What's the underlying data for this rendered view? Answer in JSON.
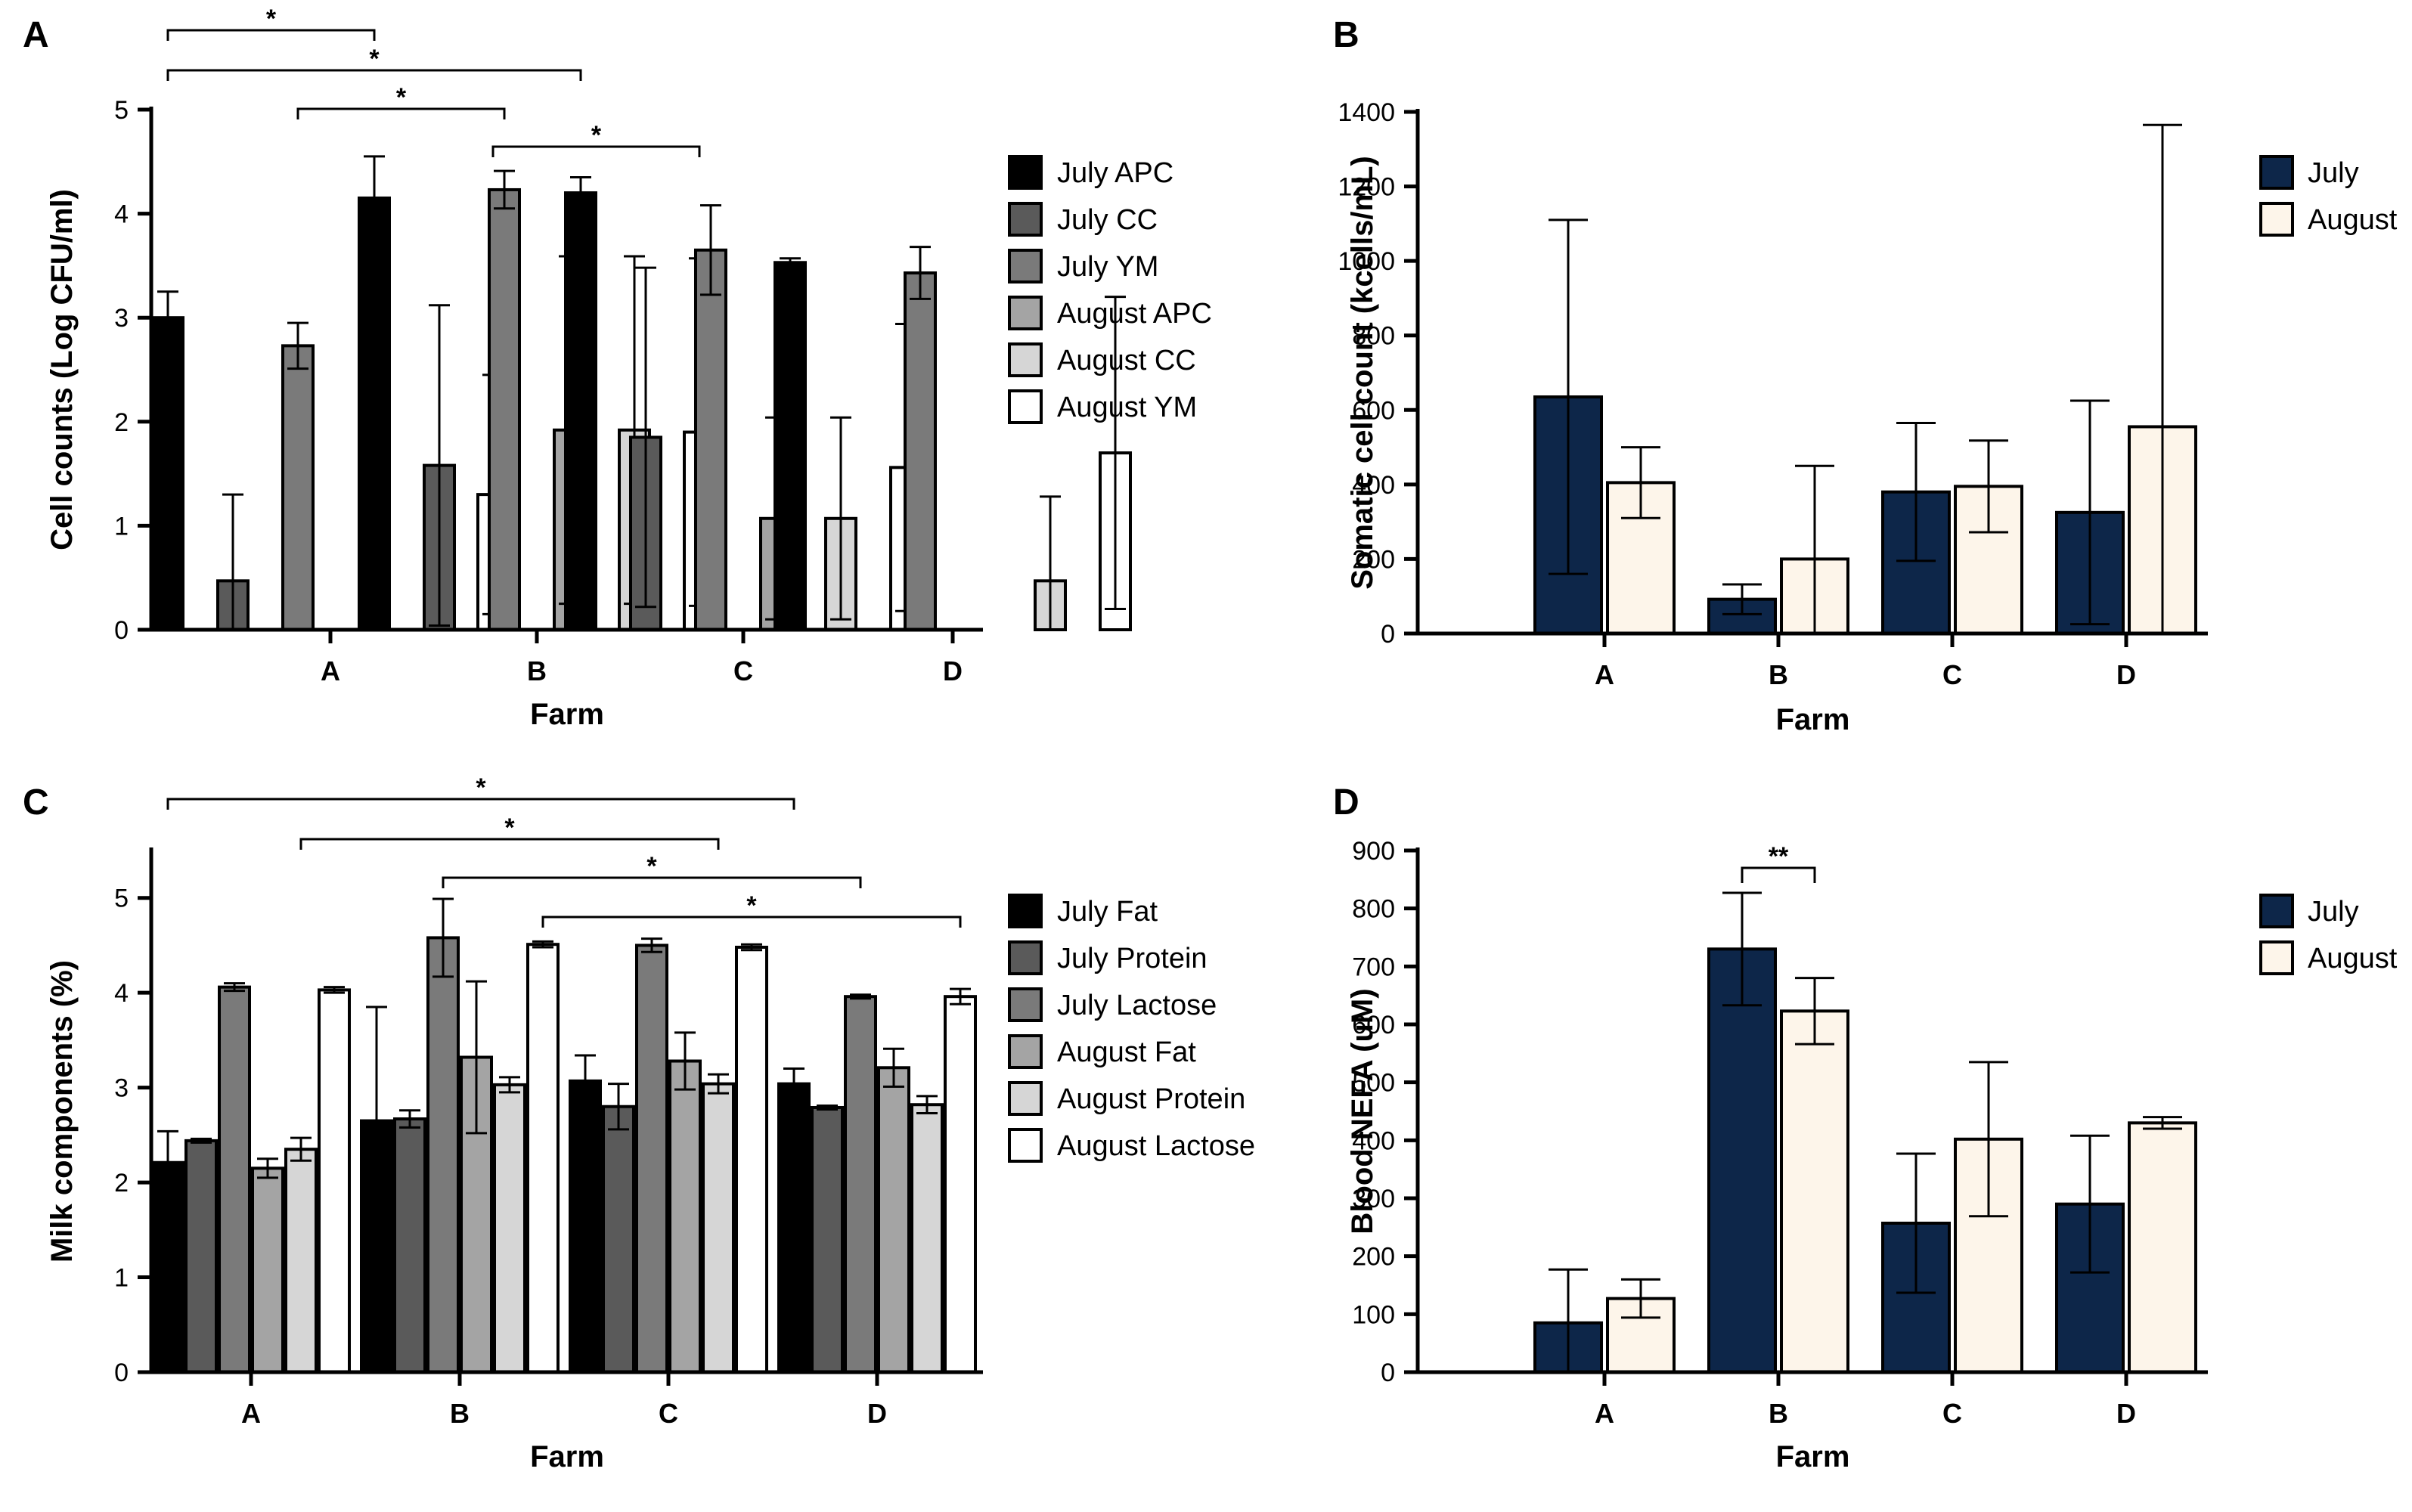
{
  "chart_data": [
    {
      "panel": "A",
      "type": "bar",
      "ylabel": "Cell counts (Log CFU/ml)",
      "xlabel": "Farm",
      "ylim": [
        0,
        5
      ],
      "yticks": [
        0,
        1,
        2,
        3,
        4,
        5
      ],
      "categories": [
        "A",
        "B",
        "C",
        "D"
      ],
      "series": [
        {
          "name": "July APC",
          "color": "#000000",
          "values": [
            3.0,
            4.15,
            4.2,
            3.53
          ],
          "errors": [
            0.25,
            0.4,
            0.15,
            0.04
          ]
        },
        {
          "name": "July CC",
          "color": "#5a5a5a",
          "values": [
            0.47,
            1.58,
            1.85,
            null
          ],
          "errors": [
            0.83,
            1.54,
            1.63,
            null
          ]
        },
        {
          "name": "July YM",
          "color": "#7a7a7a",
          "values": [
            2.73,
            4.23,
            3.65,
            3.43
          ],
          "errors": [
            0.22,
            0.18,
            0.43,
            0.25
          ]
        },
        {
          "name": "August APC",
          "color": "#a4a4a4",
          "values": [
            null,
            1.92,
            1.07,
            null
          ],
          "errors": [
            null,
            1.67,
            0.97,
            null
          ]
        },
        {
          "name": "August CC",
          "color": "#d6d6d6",
          "values": [
            null,
            1.92,
            1.07,
            0.47
          ],
          "errors": [
            null,
            1.67,
            0.97,
            0.81
          ]
        },
        {
          "name": "August YM",
          "color": "#ffffff",
          "values": [
            1.3,
            1.9,
            1.56,
            1.7
          ],
          "errors": [
            1.15,
            1.67,
            1.38,
            1.5
          ]
        }
      ],
      "significance": [
        {
          "from": "A|July APC",
          "to": "B|July APC",
          "label": "*"
        },
        {
          "from": "A|July APC",
          "to": "C|July APC",
          "label": "*"
        },
        {
          "from": "A|July YM",
          "to": "B|July YM",
          "label": "*"
        },
        {
          "from": "A|August YM",
          "to": "B|August YM",
          "label": "*"
        }
      ]
    },
    {
      "panel": "B",
      "type": "bar",
      "ylabel": "Somatic cell count (kcells/mL)",
      "xlabel": "Farm",
      "ylim": [
        0,
        1400
      ],
      "yticks": [
        0,
        200,
        400,
        600,
        800,
        1000,
        1200,
        1400
      ],
      "categories": [
        "A",
        "B",
        "C",
        "D"
      ],
      "series": [
        {
          "name": "July",
          "color": "#0d2649",
          "values": [
            635,
            92,
            380,
            325
          ],
          "errors": [
            475,
            40,
            185,
            300
          ]
        },
        {
          "name": "August",
          "color": "#fdf5ea",
          "values": [
            405,
            200,
            395,
            555
          ],
          "errors": [
            95,
            250,
            123,
            810
          ]
        }
      ],
      "significance": []
    },
    {
      "panel": "C",
      "type": "bar",
      "ylabel": "Milk components (%)",
      "xlabel": "Farm",
      "ylim": [
        0,
        5.5
      ],
      "yticks": [
        0,
        1,
        2,
        3,
        4,
        5
      ],
      "categories": [
        "A",
        "B",
        "C",
        "D"
      ],
      "series": [
        {
          "name": "July Fat",
          "color": "#000000",
          "values": [
            2.21,
            2.65,
            3.07,
            3.04
          ],
          "errors": [
            0.33,
            1.2,
            0.27,
            0.16
          ]
        },
        {
          "name": "July Protein",
          "color": "#5a5a5a",
          "values": [
            2.44,
            2.67,
            2.8,
            2.79
          ],
          "errors": [
            0.02,
            0.09,
            0.24,
            0.02
          ]
        },
        {
          "name": "July Lactose",
          "color": "#7a7a7a",
          "values": [
            4.06,
            4.58,
            4.5,
            3.96
          ],
          "errors": [
            0.04,
            0.41,
            0.07,
            0.02
          ]
        },
        {
          "name": "August Fat",
          "color": "#a4a4a4",
          "values": [
            2.15,
            3.32,
            3.28,
            3.21
          ],
          "errors": [
            0.1,
            0.8,
            0.3,
            0.2
          ]
        },
        {
          "name": "August Protein",
          "color": "#d6d6d6",
          "values": [
            2.35,
            3.03,
            3.04,
            2.82
          ],
          "errors": [
            0.12,
            0.08,
            0.1,
            0.09
          ]
        },
        {
          "name": "August Lactose",
          "color": "#ffffff",
          "values": [
            4.03,
            4.51,
            4.48,
            3.96
          ],
          "errors": [
            0.03,
            0.03,
            0.03,
            0.08
          ]
        }
      ],
      "significance": [
        {
          "from": "A|July Fat",
          "to": "D|July Fat",
          "label": "*"
        },
        {
          "from": "A|August Protein",
          "to": "C|August Protein",
          "label": "*"
        },
        {
          "from": "B|July Lactose",
          "to": "D|July Lactose",
          "label": "*"
        },
        {
          "from": "B|August Lactose",
          "to": "D|August Lactose",
          "label": "*"
        }
      ]
    },
    {
      "panel": "D",
      "type": "bar",
      "ylabel": "Blood NEFA (uM)",
      "xlabel": "Farm",
      "ylim": [
        0,
        900
      ],
      "yticks": [
        0,
        100,
        200,
        300,
        400,
        500,
        600,
        700,
        800,
        900
      ],
      "categories": [
        "A",
        "B",
        "C",
        "D"
      ],
      "series": [
        {
          "name": "July",
          "color": "#0d2649",
          "values": [
            85,
            730,
            257,
            290
          ],
          "errors": [
            92,
            97,
            120,
            118
          ]
        },
        {
          "name": "August",
          "color": "#fdf5ea",
          "values": [
            127,
            623,
            402,
            430
          ],
          "errors": [
            33,
            57,
            133,
            10
          ]
        }
      ],
      "significance": [
        {
          "from": "B|July",
          "to": "B|August",
          "label": "**"
        }
      ]
    }
  ]
}
